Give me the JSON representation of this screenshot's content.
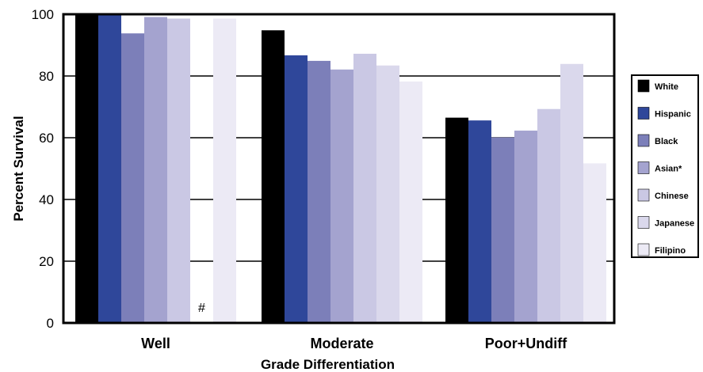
{
  "chart_data": {
    "type": "bar",
    "xlabel": "Grade Differentiation",
    "ylabel": "Percent Survival",
    "ylim": [
      0,
      100
    ],
    "yticks": [
      0,
      20,
      40,
      60,
      80,
      100
    ],
    "grid": "horizontal",
    "legend_position": "right",
    "categories": [
      "Well",
      "Moderate",
      "Poor+Undiff"
    ],
    "series": [
      {
        "name": "White",
        "color": "#000000",
        "values": [
          100,
          94.8,
          66.5
        ]
      },
      {
        "name": "Hispanic",
        "color": "#2f479a",
        "values": [
          100,
          86.7,
          65.6
        ]
      },
      {
        "name": "Black",
        "color": "#7c7fb9",
        "values": [
          93.8,
          84.9,
          60.1
        ]
      },
      {
        "name": "Asian*",
        "color": "#a4a3cf",
        "values": [
          99.1,
          82.1,
          62.3
        ]
      },
      {
        "name": "Chinese",
        "color": "#cac8e4",
        "values": [
          98.6,
          87.2,
          69.3
        ]
      },
      {
        "name": "Japanese",
        "color": "#dad8ec",
        "values": [
          null,
          83.4,
          83.9
        ]
      },
      {
        "name": "Filipino",
        "color": "#eceaf5",
        "values": [
          98.6,
          78.2,
          51.7
        ]
      }
    ],
    "annotations": [
      {
        "category": "Well",
        "series": "Japanese",
        "text": "#"
      }
    ]
  }
}
